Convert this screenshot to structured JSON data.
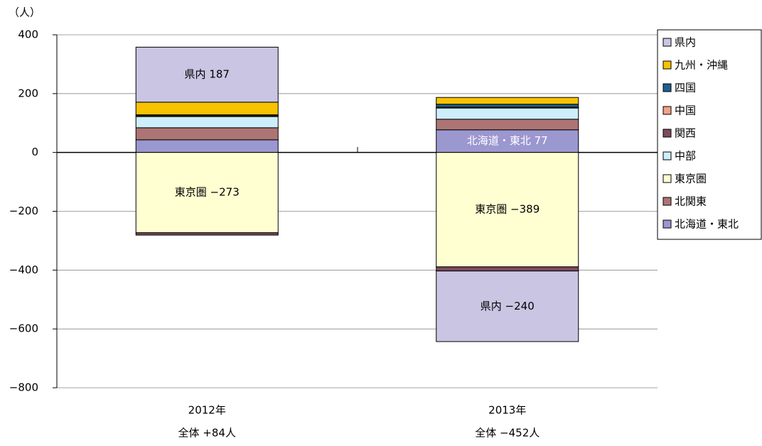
{
  "chart_data": {
    "type": "stacked_bar",
    "y_unit_label": "（人）",
    "categories": [
      "2012年",
      "2013年"
    ],
    "category_sublabels": [
      "全体 +84人",
      "全体 −452人"
    ],
    "ylim": [
      -800,
      400
    ],
    "yticks": [
      {
        "value": -800,
        "label": "−800"
      },
      {
        "value": -600,
        "label": "−600"
      },
      {
        "value": -400,
        "label": "−400"
      },
      {
        "value": -200,
        "label": "−200"
      },
      0,
      200,
      400
    ],
    "grid": true,
    "legend": "right",
    "series": [
      {
        "name": "北海道・東北",
        "color": "#9b97cf",
        "values": [
          43,
          77
        ],
        "value_labels": [
          null,
          "北海道・東北 77"
        ]
      },
      {
        "name": "北関東",
        "color": "#ad7474",
        "values": [
          41,
          36
        ]
      },
      {
        "name": "東京圏",
        "color": "#ffffd2",
        "values": [
          -273,
          -389
        ],
        "value_labels": [
          "東京圏 −273",
          "東京圏 −389"
        ]
      },
      {
        "name": "中部",
        "color": "#cdeefa",
        "values": [
          38,
          38
        ]
      },
      {
        "name": "関西",
        "color": "#7d4a5e",
        "values": [
          -8,
          -14
        ]
      },
      {
        "name": "中国",
        "color": "#f4a184",
        "values": [
          3,
          3
        ]
      },
      {
        "name": "四国",
        "color": "#1f5f8f",
        "values": [
          3,
          10
        ]
      },
      {
        "name": "九州・沖縄",
        "color": "#f7c200",
        "values": [
          43,
          23
        ]
      },
      {
        "name": "県内",
        "color": "#c9c5e2",
        "values": [
          187,
          -240
        ],
        "value_labels": [
          "県内 187",
          "県内 −240"
        ]
      }
    ]
  }
}
